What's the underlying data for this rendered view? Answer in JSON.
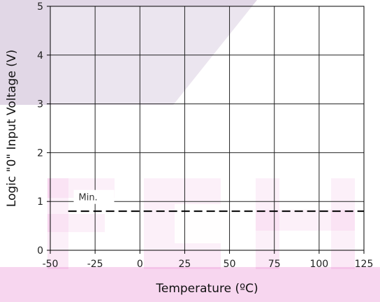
{
  "chart_data": {
    "type": "line",
    "xlabel": "Temperature (ºC)",
    "ylabel": "Logic \"0\" Input Voltage (V)",
    "xlim": [
      -50,
      125
    ],
    "ylim": [
      0,
      5
    ],
    "x_ticks": [
      "-50",
      "-25",
      "0",
      "25",
      "50",
      "75",
      "100",
      "125"
    ],
    "y_ticks": [
      "0",
      "1",
      "2",
      "3",
      "4",
      "5"
    ],
    "grid": true,
    "series": [
      {
        "name": "Min.",
        "x": [
          -40,
          125
        ],
        "y": [
          0.8,
          0.8
        ],
        "style": "dashed",
        "color": "#000000"
      }
    ],
    "annotations": [
      {
        "text": "Min.",
        "x": -35,
        "y": 1.05
      }
    ]
  },
  "watermark": {
    "color": "#c8b6d2",
    "accent": "#e15cc0"
  }
}
